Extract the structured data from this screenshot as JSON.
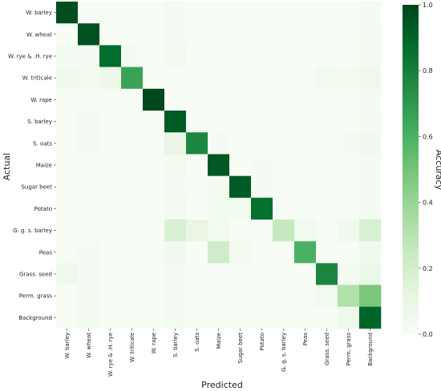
{
  "chart_data": {
    "type": "heatmap",
    "title": "",
    "xlabel": "Predicted",
    "ylabel": "Actual",
    "row_labels": [
      "W. barley",
      "W. wheat",
      "W. rye & .H. rye",
      "W. triticale",
      "W. rape",
      "S. barley",
      "S. oats",
      "Maize",
      "Sugar beet",
      "Potato",
      "G. g. s. barley",
      "Peas",
      "Grass. seed",
      "Perm. grass",
      "Background"
    ],
    "col_labels": [
      "W. barley",
      "W. wheat",
      "W. rye & .H. rye",
      "W. triticale",
      "W. rape",
      "S. barley",
      "S. oats",
      "Maize",
      "Sugar beet",
      "Potato",
      "G. g. s. barley",
      "Peas",
      "Grass. seed",
      "Perm. grass",
      "Background"
    ],
    "values": [
      [
        0.97,
        0.0,
        0.0,
        0.0,
        0.0,
        0.02,
        0.0,
        0.0,
        0.0,
        0.0,
        0.0,
        0.0,
        0.0,
        0.0,
        0.02
      ],
      [
        0.0,
        0.96,
        0.0,
        0.0,
        0.0,
        0.02,
        0.0,
        0.0,
        0.0,
        0.0,
        0.0,
        0.0,
        0.0,
        0.0,
        0.03
      ],
      [
        0.02,
        0.02,
        0.87,
        0.02,
        0.0,
        0.03,
        0.0,
        0.0,
        0.0,
        0.0,
        0.0,
        0.0,
        0.0,
        0.0,
        0.03
      ],
      [
        0.05,
        0.03,
        0.07,
        0.66,
        0.0,
        0.0,
        0.0,
        0.0,
        0.0,
        0.0,
        0.0,
        0.0,
        0.04,
        0.03,
        0.06
      ],
      [
        0.0,
        0.0,
        0.0,
        0.0,
        0.99,
        0.0,
        0.0,
        0.0,
        0.0,
        0.0,
        0.0,
        0.0,
        0.0,
        0.0,
        0.02
      ],
      [
        0.0,
        0.02,
        0.0,
        0.0,
        0.0,
        0.93,
        0.0,
        0.0,
        0.0,
        0.0,
        0.0,
        0.0,
        0.0,
        0.0,
        0.03
      ],
      [
        0.0,
        0.02,
        0.0,
        0.0,
        0.0,
        0.1,
        0.77,
        0.02,
        0.0,
        0.0,
        0.0,
        0.0,
        0.0,
        0.02,
        0.05
      ],
      [
        0.0,
        0.0,
        0.0,
        0.0,
        0.0,
        0.03,
        0.0,
        0.94,
        0.0,
        0.02,
        0.0,
        0.0,
        0.0,
        0.0,
        0.02
      ],
      [
        0.0,
        0.0,
        0.0,
        0.0,
        0.0,
        0.02,
        0.0,
        0.03,
        0.93,
        0.02,
        0.0,
        0.0,
        0.0,
        0.0,
        0.02
      ],
      [
        0.0,
        0.0,
        0.0,
        0.0,
        0.0,
        0.03,
        0.0,
        0.04,
        0.04,
        0.86,
        0.0,
        0.0,
        0.0,
        0.0,
        0.02
      ],
      [
        0.0,
        0.0,
        0.0,
        0.0,
        0.0,
        0.18,
        0.1,
        0.04,
        0.0,
        0.0,
        0.25,
        0.04,
        0.0,
        0.05,
        0.18
      ],
      [
        0.0,
        0.02,
        0.0,
        0.0,
        0.0,
        0.05,
        0.0,
        0.22,
        0.03,
        0.0,
        0.0,
        0.6,
        0.0,
        0.0,
        0.05
      ],
      [
        0.06,
        0.02,
        0.0,
        0.0,
        0.0,
        0.02,
        0.0,
        0.0,
        0.0,
        0.0,
        0.0,
        0.0,
        0.78,
        0.03,
        0.08
      ],
      [
        0.0,
        0.03,
        0.0,
        0.0,
        0.0,
        0.02,
        0.0,
        0.0,
        0.0,
        0.0,
        0.0,
        0.0,
        0.04,
        0.32,
        0.48
      ],
      [
        0.0,
        0.03,
        0.0,
        0.0,
        0.0,
        0.02,
        0.0,
        0.0,
        0.0,
        0.0,
        0.0,
        0.0,
        0.0,
        0.06,
        0.9
      ]
    ],
    "colorbar": {
      "label": "Accuracy",
      "range": [
        0,
        1
      ],
      "ticks": [
        "0.0",
        "0.2",
        "0.4",
        "0.6",
        "0.8",
        "1.0"
      ],
      "colormap": "Greens",
      "color_low": "#f7fcf5",
      "color_high": "#00441b"
    },
    "grid": false
  }
}
